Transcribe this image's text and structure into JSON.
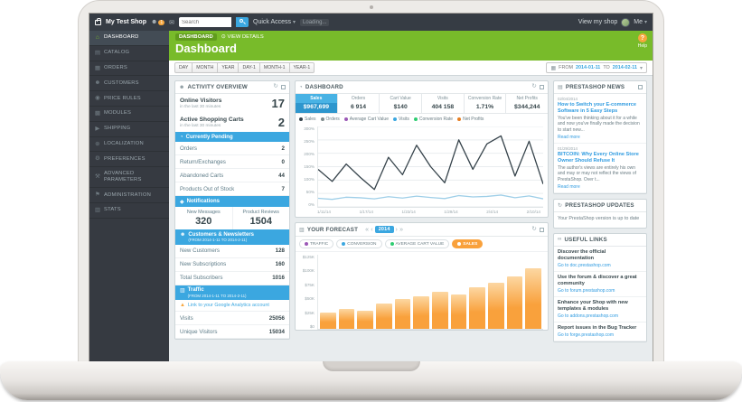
{
  "topbar": {
    "brand": "My Test Shop",
    "employee_badge": "1",
    "search_placeholder": "Search",
    "quick_access": "Quick Access",
    "loading": "Loading...",
    "view_shop": "View my shop",
    "me": "Me"
  },
  "sidebar": {
    "items": [
      {
        "label": "DASHBOARD",
        "icon": "dashboard-icon",
        "glyph": "⌂"
      },
      {
        "label": "CATALOG",
        "icon": "catalog-icon",
        "glyph": "▤"
      },
      {
        "label": "ORDERS",
        "icon": "orders-icon",
        "glyph": "▦"
      },
      {
        "label": "CUSTOMERS",
        "icon": "customers-icon",
        "glyph": "☻"
      },
      {
        "label": "PRICE RULES",
        "icon": "price-rules-icon",
        "glyph": "◉"
      },
      {
        "label": "MODULES",
        "icon": "modules-icon",
        "glyph": "▩"
      },
      {
        "label": "SHIPPING",
        "icon": "shipping-icon",
        "glyph": "▶"
      },
      {
        "label": "LOCALIZATION",
        "icon": "localization-icon",
        "glyph": "⊕"
      },
      {
        "label": "PREFERENCES",
        "icon": "preferences-icon",
        "glyph": "⚙"
      },
      {
        "label": "ADVANCED PARAMETERS",
        "icon": "advanced-parameters-icon",
        "glyph": "⚒"
      },
      {
        "label": "ADMINISTRATION",
        "icon": "administration-icon",
        "glyph": "⚑"
      },
      {
        "label": "STATS",
        "icon": "stats-icon",
        "glyph": "▥"
      }
    ]
  },
  "pageheader": {
    "breadcrumb_section": "DASHBOARD",
    "breadcrumb_action": "VIEW DETAILS",
    "title": "Dashboard",
    "help": "Help"
  },
  "datefilter": {
    "buttons": [
      "DAY",
      "MONTH",
      "YEAR",
      "DAY-1",
      "MONTH-1",
      "YEAR-1"
    ],
    "from_label": "FROM",
    "from_value": "2014-01-11",
    "to_label": "TO",
    "to_value": "2014-02-11"
  },
  "activity": {
    "title": "ACTIVITY OVERVIEW",
    "online_visitors": {
      "label": "Online Visitors",
      "sub": "in the last 30 minutes",
      "value": "17"
    },
    "shopping_carts": {
      "label": "Active Shopping Carts",
      "sub": "in the last 30 minutes",
      "value": "2"
    },
    "pending": {
      "header": "Currently Pending",
      "rows": [
        {
          "label": "Orders",
          "value": "2"
        },
        {
          "label": "Return/Exchanges",
          "value": "0"
        },
        {
          "label": "Abandoned Carts",
          "value": "44"
        },
        {
          "label": "Products Out of Stock",
          "value": "7"
        }
      ]
    },
    "notifications": {
      "header": "Notifications",
      "cols": [
        {
          "label": "New Messages",
          "value": "320"
        },
        {
          "label": "Product Reviews",
          "value": "1504"
        }
      ]
    },
    "customers": {
      "header": "Customers & Newsletters",
      "subheader": "(FROM 2014-1-11 TO 2014-2-11)",
      "rows": [
        {
          "label": "New Customers",
          "value": "128"
        },
        {
          "label": "New Subscriptions",
          "value": "160"
        },
        {
          "label": "Total Subscribers",
          "value": "1016"
        }
      ]
    },
    "traffic": {
      "header": "Traffic",
      "subheader": "(FROM 2014-1-11 TO 2014-2-11)",
      "analytics_link": "Link to your Google Analytics account",
      "rows": [
        {
          "label": "Visits",
          "value": "25056"
        },
        {
          "label": "Unique Visitors",
          "value": "15034"
        }
      ]
    }
  },
  "dashboard_panel": {
    "title": "DASHBOARD",
    "kpis": [
      {
        "label": "Sales",
        "value": "$967,699"
      },
      {
        "label": "Orders",
        "value": "6 914"
      },
      {
        "label": "Cart Value",
        "value": "$140"
      },
      {
        "label": "Visits",
        "value": "404 158"
      },
      {
        "label": "Conversion Rate",
        "value": "1.71%"
      },
      {
        "label": "Net Profits",
        "value": "$344,244"
      }
    ],
    "legend": [
      {
        "label": "Sales",
        "color": "#36434b"
      },
      {
        "label": "Orders",
        "color": "#7f8c8d"
      },
      {
        "label": "Average Cart Value",
        "color": "#9b59b6"
      },
      {
        "label": "Visits",
        "color": "#3ba7e0"
      },
      {
        "label": "Conversion Rate",
        "color": "#2ecc71"
      },
      {
        "label": "Net Profits",
        "color": "#e67e22"
      }
    ]
  },
  "forecast_panel": {
    "title": "YOUR FORECAST",
    "year": "2014",
    "tabs": [
      {
        "label": "TRAFFIC",
        "color": "#9b59b6"
      },
      {
        "label": "CONVERSION",
        "color": "#3ba7e0"
      },
      {
        "label": "AVERAGE CART VALUE",
        "color": "#2ecc71"
      },
      {
        "label": "SALES",
        "color": "#ffffff"
      }
    ]
  },
  "news_panel": {
    "title": "PRESTASHOP NEWS",
    "items": [
      {
        "date": "02/04/2014",
        "title": "How to Switch your E-commerce Software in 5 Easy Steps",
        "excerpt": "You've been thinking about it for a while and now you've finally made the decision to start new...",
        "read_more": "Read more"
      },
      {
        "date": "01/29/2014",
        "title": "BITCOIN: Why Every Online Store Owner Should Refuse It",
        "excerpt": "The author's views are entirely his own and may or may not reflect the views of PrestaShop. Over t...",
        "read_more": "Read more"
      }
    ]
  },
  "updates_panel": {
    "title": "PRESTASHOP UPDATES",
    "message": "Your PrestaShop version is up to date"
  },
  "links_panel": {
    "title": "USEFUL LINKS",
    "items": [
      {
        "title": "Discover the official documentation",
        "link": "Go to doc.prestashop.com"
      },
      {
        "title": "Use the forum & discover a great community",
        "link": "Go to forum.prestashop.com"
      },
      {
        "title": "Enhance your Shop with new templates & modules",
        "link": "Go to addons.prestashop.com"
      },
      {
        "title": "Report issues in the Bug Tracker",
        "link": "Go to forge.prestashop.com"
      }
    ]
  },
  "chart_data": [
    {
      "type": "line",
      "title": "Dashboard activity (current vs previous period)",
      "x_ticks": [
        "1/11/14",
        "1/17/14",
        "1/23/14",
        "1/29/14",
        "2/4/14",
        "2/10/14"
      ],
      "y_ticks": [
        "300%",
        "250%",
        "200%",
        "150%",
        "100%",
        "50%",
        "0%"
      ],
      "ylim": [
        0,
        300
      ],
      "grid": true,
      "legend_position": "top",
      "series": [
        {
          "name": "Sales",
          "color": "#36434b",
          "values": [
            140,
            95,
            160,
            110,
            65,
            185,
            120,
            230,
            150,
            90,
            250,
            140,
            235,
            265,
            115,
            245,
            85
          ]
        },
        {
          "name": "Visits",
          "color": "#9fcfe8",
          "values": [
            32,
            28,
            36,
            34,
            30,
            38,
            33,
            40,
            35,
            31,
            42,
            37,
            39,
            44,
            34,
            41,
            30
          ]
        }
      ]
    },
    {
      "type": "bar",
      "title": "Your Forecast - Sales (2014)",
      "categories": [
        "Jan",
        "Feb",
        "Mar",
        "Apr",
        "May",
        "Jun",
        "Jul",
        "Aug",
        "Sep",
        "Oct",
        "Nov",
        "Dec"
      ],
      "values": [
        27,
        33,
        30,
        43,
        50,
        55,
        62,
        58,
        70,
        78,
        88,
        102
      ],
      "y_ticks": [
        "$125K",
        "$100K",
        "$75K",
        "$50K",
        "$25K",
        "$0"
      ],
      "ylim": [
        0,
        125
      ],
      "bar_color": "#f9a13c"
    }
  ]
}
